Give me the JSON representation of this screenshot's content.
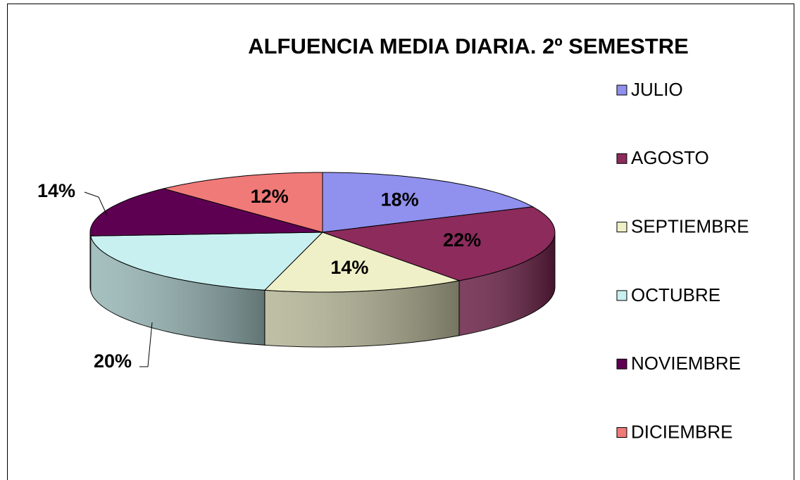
{
  "chart_data": {
    "type": "pie",
    "title": "ALFUENCIA MEDIA DIARIA. 2º SEMESTRE",
    "categories": [
      "JULIO",
      "AGOSTO",
      "SEPTIEMBRE",
      "OCTUBRE",
      "NOVIEMBRE",
      "DICIEMBRE"
    ],
    "values": [
      18,
      22,
      14,
      20,
      14,
      12
    ],
    "value_labels": [
      "18%",
      "22%",
      "14%",
      "20%",
      "14%",
      "12%"
    ],
    "colors": [
      "#9090ee",
      "#8c2b5c",
      "#f0f0c8",
      "#c8f0f0",
      "#5e0052",
      "#f07a78"
    ],
    "legend": "right"
  }
}
